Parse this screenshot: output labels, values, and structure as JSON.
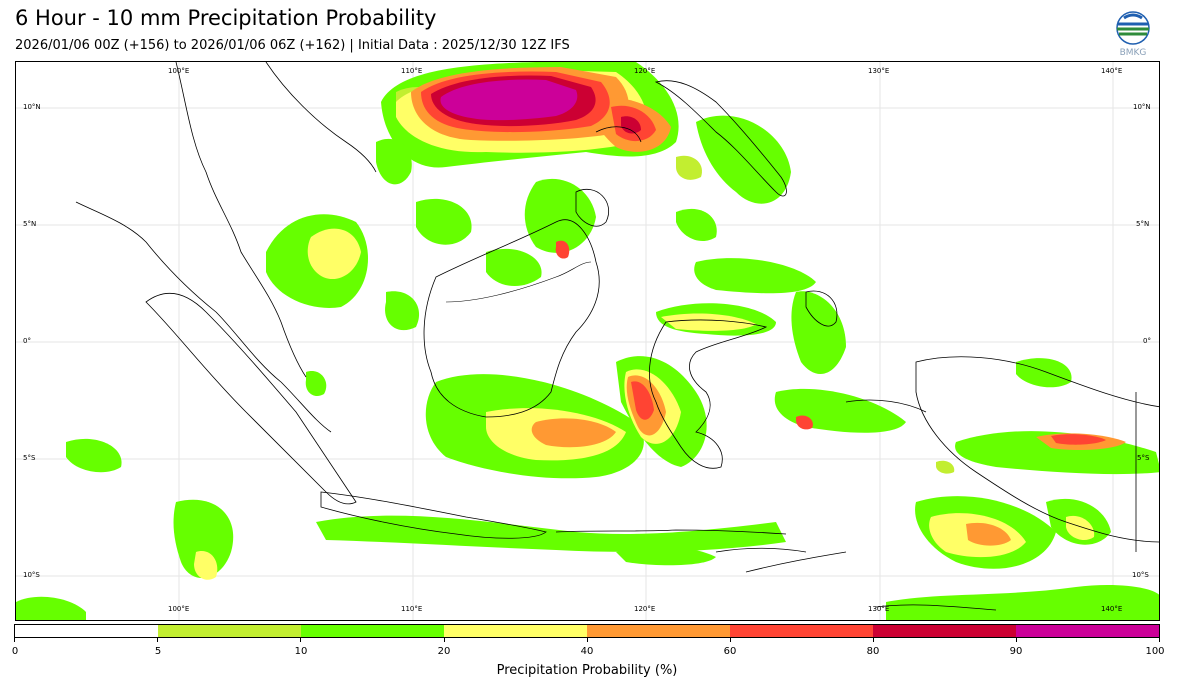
{
  "header": {
    "title": "6 Hour - 10 mm Precipitation Probability",
    "subtitle": "2026/01/06 00Z (+156) to 2026/01/06 06Z (+162) | Initial Data : 2025/12/30 12Z IFS",
    "logo_text": "BMKG"
  },
  "map": {
    "lon_labels_top": [
      "100°E",
      "110°E",
      "120°E",
      "130°E",
      "140°E"
    ],
    "lon_labels_bottom": [
      "100°E",
      "110°E",
      "120°E",
      "130°E",
      "140°E"
    ],
    "lat_labels_left": [
      "10°N",
      "5°N",
      "0°",
      "5°S",
      "10°S"
    ],
    "lat_labels_right": [
      "10°N",
      "5°N",
      "0°",
      "5°S",
      "10°S"
    ],
    "level_colors": {
      "c5": "#c2ee30",
      "c10": "#66ff00",
      "c20": "#ffff66",
      "c40": "#ff9933",
      "c60": "#ff4433",
      "c80": "#cc0033",
      "c90": "#cc0099"
    }
  },
  "colorbar": {
    "title": "Precipitation Probability (%)",
    "ticks": [
      "0",
      "5",
      "10",
      "20",
      "40",
      "60",
      "80",
      "90",
      "100"
    ],
    "colors": [
      "#ffffff",
      "#c2ee30",
      "#66ff00",
      "#ffff66",
      "#ff9933",
      "#ff4433",
      "#cc0033",
      "#cc0099"
    ]
  }
}
